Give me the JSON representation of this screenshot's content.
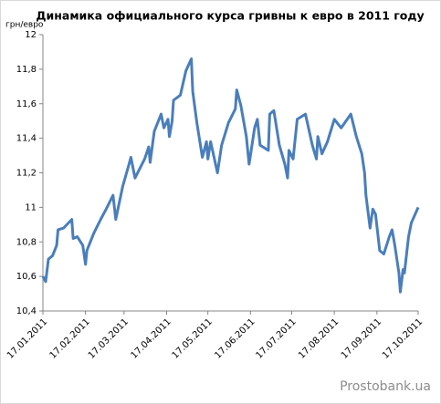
{
  "chart_data": {
    "type": "line",
    "title": "Динамика официального курса гривны к евро в 2011 году",
    "y_label": "грн/евро",
    "watermark": "Prostobank.ua",
    "color": "#4a7ebb",
    "grid": false,
    "xlim": [
      "2011-01-17",
      "2011-10-17"
    ],
    "xticks": [
      {
        "value": "2011-01-17",
        "label": "17.01.2011"
      },
      {
        "value": "2011-02-17",
        "label": "17.02.2011"
      },
      {
        "value": "2011-03-17",
        "label": "17.03.2011"
      },
      {
        "value": "2011-04-17",
        "label": "17.04.2011"
      },
      {
        "value": "2011-05-17",
        "label": "17.05.2011"
      },
      {
        "value": "2011-06-17",
        "label": "17.06.2011"
      },
      {
        "value": "2011-07-17",
        "label": "17.07.2011"
      },
      {
        "value": "2011-08-17",
        "label": "17.08.2011"
      },
      {
        "value": "2011-09-17",
        "label": "17.09.2011"
      },
      {
        "value": "2011-10-17",
        "label": "17.10.2011"
      }
    ],
    "ylim": [
      10.4,
      12
    ],
    "yticks": [
      {
        "value": 10.4,
        "label": "10,4"
      },
      {
        "value": 10.6,
        "label": "10,6"
      },
      {
        "value": 10.8,
        "label": "10,8"
      },
      11,
      {
        "value": 11.2,
        "label": "11,2"
      },
      {
        "value": 11.4,
        "label": "11,4"
      },
      {
        "value": 11.6,
        "label": "11,6"
      },
      {
        "value": 11.8,
        "label": "11,8"
      },
      12
    ],
    "x": [
      "2011-01-17",
      "2011-01-19",
      "2011-01-21",
      "2011-01-24",
      "2011-01-27",
      "2011-01-28",
      "2011-02-01",
      "2011-02-07",
      "2011-02-08",
      "2011-02-11",
      "2011-02-15",
      "2011-02-17",
      "2011-02-18",
      "2011-02-23",
      "2011-02-28",
      "2011-03-04",
      "2011-03-09",
      "2011-03-11",
      "2011-03-16",
      "2011-03-21",
      "2011-03-22",
      "2011-03-25",
      "2011-04-01",
      "2011-04-04",
      "2011-04-05",
      "2011-04-08",
      "2011-04-13",
      "2011-04-15",
      "2011-04-18",
      "2011-04-19",
      "2011-04-21",
      "2011-04-22",
      "2011-04-27",
      "2011-05-01",
      "2011-05-05",
      "2011-05-06",
      "2011-05-09",
      "2011-05-13",
      "2011-05-16",
      "2011-05-17",
      "2011-05-19",
      "2011-05-24",
      "2011-05-27",
      "2011-06-01",
      "2011-06-06",
      "2011-06-07",
      "2011-06-10",
      "2011-06-14",
      "2011-06-16",
      "2011-06-20",
      "2011-06-22",
      "2011-06-24",
      "2011-06-30",
      "2011-07-01",
      "2011-07-04",
      "2011-07-08",
      "2011-07-12",
      "2011-07-14",
      "2011-07-15",
      "2011-07-18",
      "2011-07-21",
      "2011-07-27",
      "2011-08-01",
      "2011-08-04",
      "2011-08-05",
      "2011-08-08",
      "2011-08-12",
      "2011-08-17",
      "2011-08-22",
      "2011-08-29",
      "2011-09-02",
      "2011-09-06",
      "2011-09-08",
      "2011-09-09",
      "2011-09-12",
      "2011-09-14",
      "2011-09-16",
      "2011-09-19",
      "2011-09-22",
      "2011-09-26",
      "2011-09-28",
      "2011-09-30",
      "2011-10-03",
      "2011-10-04",
      "2011-10-06",
      "2011-10-07",
      "2011-10-10",
      "2011-10-12",
      "2011-10-17"
    ],
    "values": [
      10.6,
      10.57,
      10.7,
      10.72,
      10.78,
      10.87,
      10.88,
      10.93,
      10.82,
      10.83,
      10.78,
      10.67,
      10.75,
      10.85,
      10.93,
      10.99,
      11.07,
      10.93,
      11.12,
      11.26,
      11.29,
      11.17,
      11.28,
      11.35,
      11.26,
      11.44,
      11.54,
      11.46,
      11.51,
      11.41,
      11.5,
      11.62,
      11.65,
      11.79,
      11.86,
      11.67,
      11.49,
      11.29,
      11.38,
      11.28,
      11.38,
      11.2,
      11.36,
      11.49,
      11.57,
      11.68,
      11.59,
      11.41,
      11.25,
      11.46,
      11.51,
      11.36,
      11.33,
      11.54,
      11.56,
      11.36,
      11.25,
      11.17,
      11.33,
      11.28,
      11.51,
      11.54,
      11.36,
      11.28,
      11.41,
      11.31,
      11.38,
      11.51,
      11.46,
      11.54,
      11.41,
      11.31,
      11.2,
      11.07,
      10.88,
      10.99,
      10.96,
      10.75,
      10.73,
      10.83,
      10.87,
      10.78,
      10.62,
      10.51,
      10.64,
      10.62,
      10.83,
      10.91,
      11.0
    ]
  }
}
